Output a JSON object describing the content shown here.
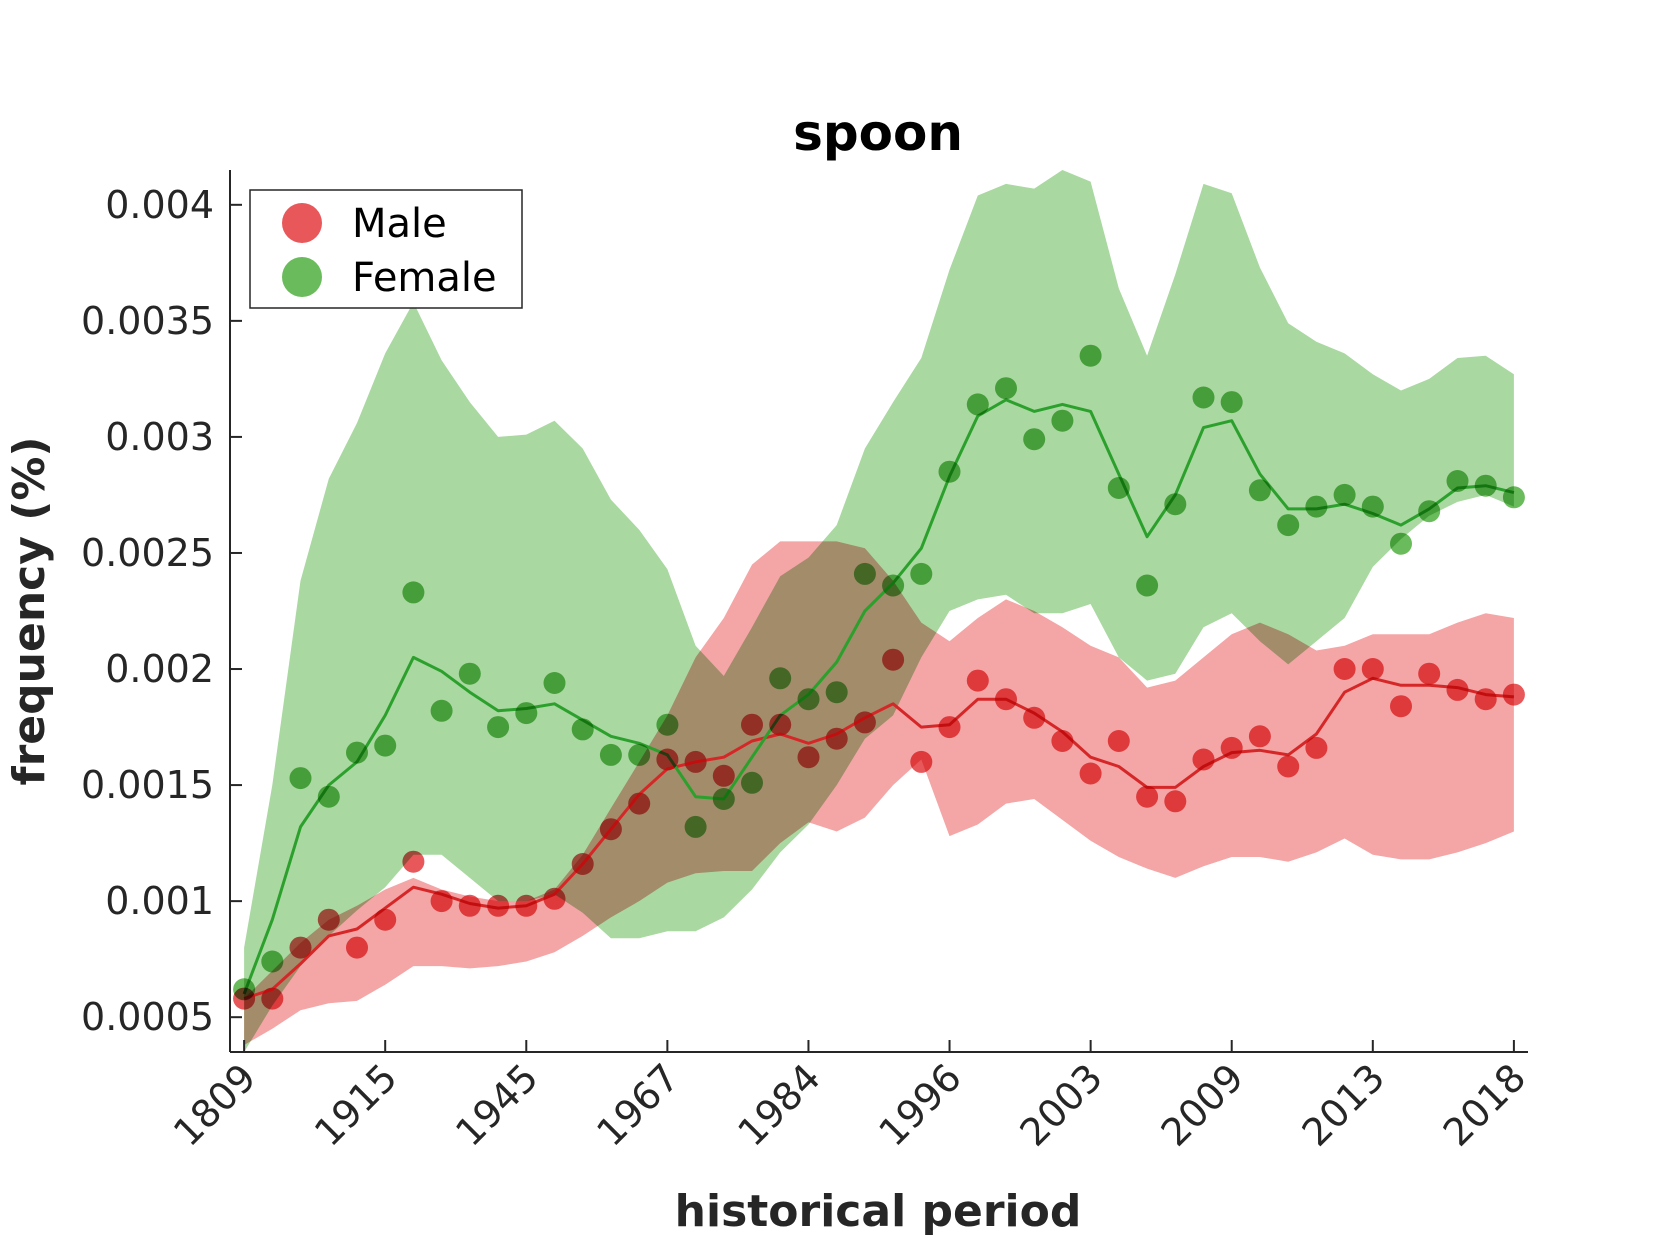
{
  "chart_data": {
    "type": "line",
    "title": "spoon",
    "xlabel": "historical period",
    "ylabel": "frequency (%)",
    "x_tick_labels": [
      "1809",
      "1915",
      "1945",
      "1967",
      "1984",
      "1996",
      "2003",
      "2009",
      "2013",
      "2018"
    ],
    "y_ticks": [
      0.0005,
      0.001,
      0.0015,
      0.002,
      0.0025,
      0.003,
      0.0035,
      0.004
    ],
    "y_tick_labels": [
      "0.0005",
      "0.001",
      "0.0015",
      "0.002",
      "0.0025",
      "0.003",
      "0.0035",
      "0.004"
    ],
    "ylim": [
      0.00035,
      0.00415
    ],
    "x_index_range": [
      -1,
      91
    ],
    "legend": {
      "placement": "top-left",
      "entries": [
        {
          "label": "Male",
          "color": "#e8575a"
        },
        {
          "label": "Female",
          "color": "#6abb5b"
        }
      ]
    },
    "series": [
      {
        "name": "Male",
        "color": "#e8575a",
        "line_color": "#d62728",
        "band_color": "#f4a0a1",
        "points": [
          0.00058,
          0.00058,
          0.0008,
          0.00092,
          0.0008,
          0.00092,
          0.00117,
          0.001,
          0.00098,
          0.00098,
          0.00098,
          0.00101,
          0.00116,
          0.00131,
          0.00142,
          0.00161,
          0.0016,
          0.00154,
          0.00176,
          0.00176,
          0.00162,
          0.0017,
          0.00177,
          0.00204,
          0.0016,
          0.00175,
          0.00195,
          0.00187,
          0.00179,
          0.00169,
          0.00155,
          0.00169,
          0.00145,
          0.00143,
          0.00161,
          0.00166,
          0.00171,
          0.00158,
          0.00166,
          0.002,
          0.002,
          0.00184,
          0.00198,
          0.00191,
          0.00187,
          0.00189
        ],
        "trend": [
          0.00058,
          0.00062,
          0.00073,
          0.00085,
          0.00088,
          0.00097,
          0.00106,
          0.00103,
          0.00099,
          0.00097,
          0.00098,
          0.00103,
          0.00116,
          0.00131,
          0.00146,
          0.00157,
          0.0016,
          0.00162,
          0.00169,
          0.00172,
          0.00168,
          0.00172,
          0.00179,
          0.00185,
          0.00175,
          0.00176,
          0.00187,
          0.00187,
          0.00181,
          0.00173,
          0.00162,
          0.00158,
          0.00149,
          0.00149,
          0.00158,
          0.00164,
          0.00165,
          0.00163,
          0.00172,
          0.0019,
          0.00196,
          0.00193,
          0.00193,
          0.00192,
          0.00189,
          0.00188
        ],
        "band_upper": [
          0.00058,
          0.0007,
          0.00082,
          0.00092,
          0.00098,
          0.00105,
          0.0011,
          0.00105,
          0.00102,
          0.001,
          0.001,
          0.00105,
          0.0012,
          0.0014,
          0.0016,
          0.0018,
          0.00205,
          0.00222,
          0.00245,
          0.00255,
          0.00255,
          0.00255,
          0.00252,
          0.00238,
          0.0022,
          0.00212,
          0.00222,
          0.0023,
          0.00225,
          0.00218,
          0.0021,
          0.00205,
          0.00192,
          0.00195,
          0.00205,
          0.00215,
          0.0022,
          0.00215,
          0.00208,
          0.0021,
          0.00215,
          0.00215,
          0.00215,
          0.0022,
          0.00224,
          0.00222
        ],
        "band_lower": [
          0.00038,
          0.00045,
          0.00053,
          0.00056,
          0.00057,
          0.00064,
          0.00072,
          0.00072,
          0.00071,
          0.00072,
          0.00074,
          0.00078,
          0.00085,
          0.00093,
          0.001,
          0.00108,
          0.00112,
          0.00113,
          0.00113,
          0.00125,
          0.00134,
          0.0013,
          0.00136,
          0.0015,
          0.00161,
          0.00128,
          0.00133,
          0.00142,
          0.00144,
          0.00135,
          0.00126,
          0.00119,
          0.00114,
          0.0011,
          0.00115,
          0.00119,
          0.00119,
          0.00117,
          0.00121,
          0.00127,
          0.0012,
          0.00118,
          0.00118,
          0.00121,
          0.00125,
          0.0013
        ]
      },
      {
        "name": "Female",
        "color": "#6abb5b",
        "line_color": "#2ca02c",
        "band_color": "#a9d8a1",
        "points": [
          0.00062,
          0.00074,
          0.00153,
          0.00145,
          0.00164,
          0.00167,
          0.00233,
          0.00182,
          0.00198,
          0.00175,
          0.00181,
          0.00194,
          0.00174,
          0.00163,
          0.00163,
          0.00176,
          0.00132,
          0.00144,
          0.00151,
          0.00196,
          0.00187,
          0.0019,
          0.00241,
          0.00236,
          0.00241,
          0.00285,
          0.00314,
          0.00321,
          0.00299,
          0.00307,
          0.00335,
          0.00278,
          0.00236,
          0.00271,
          0.00317,
          0.00315,
          0.00277,
          0.00262,
          0.0027,
          0.00275,
          0.0027,
          0.00254,
          0.00268,
          0.00281,
          0.00279,
          0.00274
        ],
        "trend": [
          0.0006,
          0.00092,
          0.00132,
          0.0015,
          0.0016,
          0.0018,
          0.00205,
          0.00199,
          0.0019,
          0.00182,
          0.00183,
          0.00185,
          0.00178,
          0.00171,
          0.00168,
          0.00163,
          0.00145,
          0.00144,
          0.00162,
          0.0018,
          0.00189,
          0.00203,
          0.00225,
          0.00237,
          0.00252,
          0.00283,
          0.00309,
          0.00316,
          0.00311,
          0.00314,
          0.00311,
          0.00284,
          0.00257,
          0.00275,
          0.00304,
          0.00307,
          0.00284,
          0.00269,
          0.00269,
          0.00271,
          0.00267,
          0.00262,
          0.00269,
          0.00278,
          0.00279,
          0.00276
        ],
        "band_upper": [
          0.0008,
          0.0015,
          0.00238,
          0.00282,
          0.00306,
          0.00336,
          0.00358,
          0.00333,
          0.00315,
          0.003,
          0.00301,
          0.00307,
          0.00295,
          0.00273,
          0.0026,
          0.00243,
          0.0021,
          0.00197,
          0.00218,
          0.0024,
          0.00248,
          0.00262,
          0.00295,
          0.00315,
          0.00334,
          0.00372,
          0.00404,
          0.00409,
          0.00407,
          0.00415,
          0.0041,
          0.00364,
          0.00335,
          0.0037,
          0.00409,
          0.00405,
          0.00373,
          0.00349,
          0.00341,
          0.00336,
          0.00327,
          0.0032,
          0.00325,
          0.00334,
          0.00335,
          0.00327
        ],
        "band_lower": [
          0.00035,
          0.00055,
          0.00072,
          0.00085,
          0.00096,
          0.00106,
          0.0012,
          0.0012,
          0.0011,
          0.001,
          0.001,
          0.00103,
          0.00095,
          0.00084,
          0.00084,
          0.00087,
          0.00087,
          0.00093,
          0.00105,
          0.00121,
          0.00133,
          0.0015,
          0.0017,
          0.0018,
          0.00205,
          0.00225,
          0.0023,
          0.00232,
          0.00224,
          0.00224,
          0.00228,
          0.00205,
          0.00195,
          0.00198,
          0.00218,
          0.00224,
          0.00212,
          0.00202,
          0.00212,
          0.00222,
          0.00244,
          0.00256,
          0.00266,
          0.00272,
          0.00275,
          0.0027
        ]
      }
    ],
    "overlap_color": "#a49e71"
  }
}
